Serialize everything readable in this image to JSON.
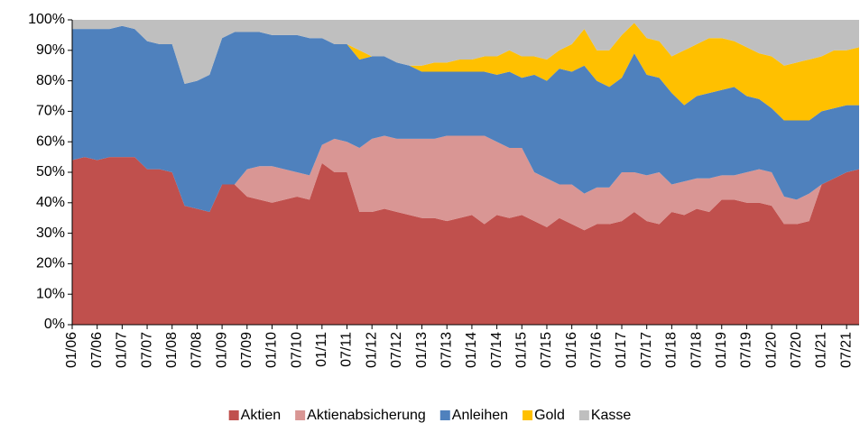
{
  "chart_data": {
    "type": "stacked_area",
    "categories": [
      "01/06",
      null,
      "07/06",
      null,
      "01/07",
      null,
      "07/07",
      null,
      "01/08",
      null,
      "07/08",
      null,
      "01/09",
      null,
      "07/09",
      null,
      "01/10",
      null,
      "07/10",
      null,
      "01/11",
      null,
      "07/11",
      null,
      "01/12",
      null,
      "07/12",
      null,
      "01/13",
      null,
      "07/13",
      null,
      "01/14",
      null,
      "07/14",
      null,
      "01/15",
      null,
      "07/15",
      null,
      "01/16",
      null,
      "07/16",
      null,
      "01/17",
      null,
      "07/17",
      null,
      "01/18",
      null,
      "07/18",
      null,
      "01/19",
      null,
      "07/19",
      null,
      "01/20",
      null,
      "07/20",
      null,
      "01/21",
      null,
      "07/21",
      null
    ],
    "series": [
      {
        "name": "Aktien",
        "color": "#c0504d",
        "values": [
          54,
          55,
          54,
          55,
          55,
          55,
          51,
          51,
          50,
          39,
          38,
          37,
          46,
          46,
          42,
          41,
          40,
          41,
          42,
          41,
          53,
          50,
          50,
          37,
          37,
          38,
          37,
          36,
          35,
          35,
          34,
          35,
          36,
          33,
          36,
          35,
          36,
          34,
          32,
          35,
          33,
          31,
          33,
          33,
          34,
          37,
          34,
          33,
          37,
          36,
          38,
          37,
          41,
          41,
          40,
          40,
          39,
          33,
          33,
          34,
          46,
          48,
          50,
          51
        ]
      },
      {
        "name": "Aktienabsicherung",
        "color": "#d99694",
        "values": [
          0,
          0,
          0,
          0,
          0,
          0,
          0,
          0,
          0,
          0,
          0,
          0,
          0,
          0,
          9,
          11,
          12,
          10,
          8,
          8,
          6,
          11,
          10,
          21,
          24,
          24,
          24,
          25,
          26,
          26,
          28,
          27,
          26,
          29,
          24,
          23,
          22,
          16,
          16,
          11,
          13,
          12,
          12,
          12,
          16,
          13,
          15,
          17,
          9,
          11,
          10,
          11,
          8,
          8,
          10,
          11,
          11,
          9,
          8,
          9,
          0,
          0,
          0,
          0
        ]
      },
      {
        "name": "Anleihen",
        "color": "#4f81bd",
        "values": [
          43,
          42,
          43,
          42,
          43,
          42,
          42,
          41,
          42,
          40,
          42,
          45,
          48,
          50,
          45,
          44,
          43,
          44,
          45,
          45,
          35,
          31,
          32,
          29,
          27,
          26,
          25,
          24,
          22,
          22,
          21,
          21,
          21,
          21,
          22,
          25,
          23,
          32,
          32,
          38,
          37,
          42,
          35,
          33,
          31,
          39,
          33,
          31,
          30,
          25,
          27,
          28,
          28,
          29,
          25,
          23,
          21,
          25,
          26,
          24,
          24,
          23,
          22,
          21
        ]
      },
      {
        "name": "Gold",
        "color": "#ffc000",
        "values": [
          0,
          0,
          0,
          0,
          0,
          0,
          0,
          0,
          0,
          0,
          0,
          0,
          0,
          0,
          0,
          0,
          0,
          0,
          0,
          0,
          0,
          0,
          0,
          3,
          0,
          0,
          0,
          0,
          2,
          3,
          3,
          4,
          4,
          5,
          6,
          7,
          7,
          6,
          7,
          6,
          9,
          12,
          10,
          12,
          14,
          10,
          12,
          12,
          12,
          18,
          17,
          18,
          17,
          15,
          16,
          15,
          17,
          18,
          19,
          20,
          18,
          19,
          18,
          19
        ]
      },
      {
        "name": "Kasse",
        "color": "#bfbfbf",
        "values": [
          3,
          3,
          3,
          3,
          2,
          3,
          7,
          8,
          8,
          21,
          20,
          18,
          6,
          4,
          4,
          4,
          5,
          5,
          5,
          6,
          6,
          8,
          8,
          10,
          12,
          12,
          14,
          15,
          15,
          14,
          14,
          13,
          13,
          12,
          12,
          10,
          12,
          12,
          13,
          10,
          8,
          3,
          10,
          10,
          5,
          1,
          6,
          7,
          12,
          10,
          8,
          6,
          6,
          7,
          9,
          11,
          12,
          15,
          14,
          13,
          12,
          10,
          10,
          9
        ]
      }
    ],
    "ylim": [
      0,
      100
    ],
    "yticks": [
      {
        "value": 0,
        "label": "0%"
      },
      {
        "value": 10,
        "label": "10%"
      },
      {
        "value": 20,
        "label": "20%"
      },
      {
        "value": 30,
        "label": "30%"
      },
      {
        "value": 40,
        "label": "40%"
      },
      {
        "value": 50,
        "label": "50%"
      },
      {
        "value": 60,
        "label": "60%"
      },
      {
        "value": 70,
        "label": "70%"
      },
      {
        "value": 80,
        "label": "80%"
      },
      {
        "value": 90,
        "label": "90%"
      },
      {
        "value": 100,
        "label": "100%"
      }
    ],
    "legend": "bottom"
  }
}
